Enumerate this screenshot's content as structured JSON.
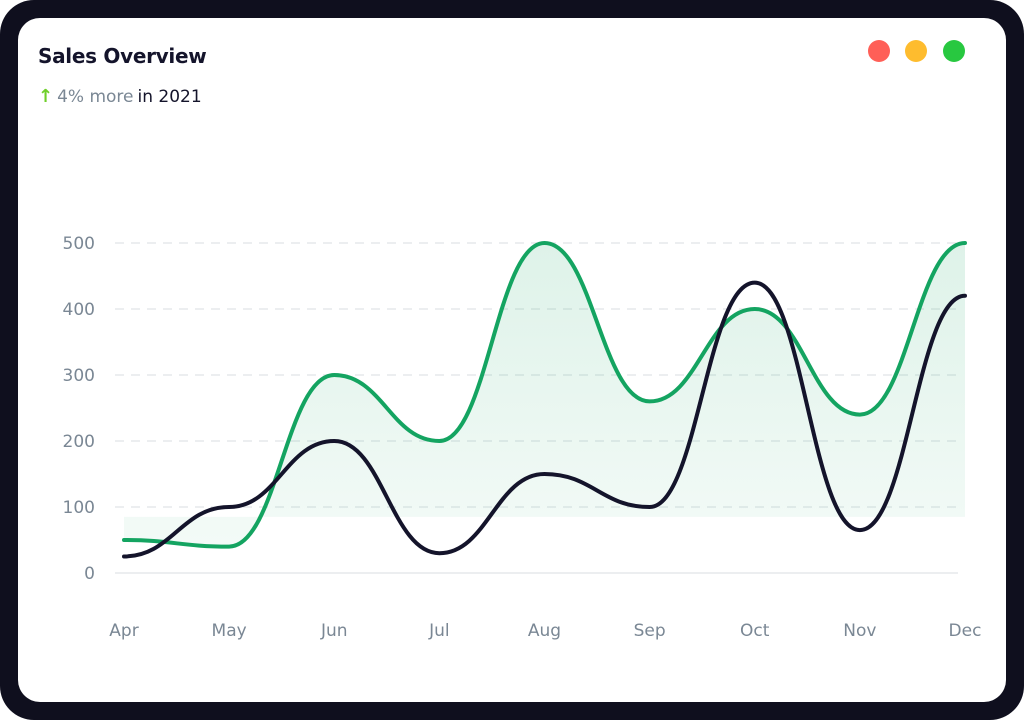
{
  "window": {
    "dots": [
      {
        "name": "close",
        "color": "#FF5F57"
      },
      {
        "name": "minimize",
        "color": "#FEBC2E"
      },
      {
        "name": "maximize",
        "color": "#28C840"
      }
    ]
  },
  "header": {
    "title": "Sales Overview",
    "arrow_icon": "arrow-up-icon",
    "change": "4% more",
    "period": "in 2021"
  },
  "chart_data": {
    "type": "line",
    "title": "Sales Overview",
    "categories": [
      "Apr",
      "May",
      "Jun",
      "Jul",
      "Aug",
      "Sep",
      "Oct",
      "Nov",
      "Dec"
    ],
    "ylim": [
      0,
      500
    ],
    "yticks": [
      "0",
      "100",
      "200",
      "300",
      "400",
      "500"
    ],
    "grid": true,
    "series": [
      {
        "values": [
          50,
          40,
          300,
          200,
          500,
          260,
          400,
          240,
          500
        ],
        "color": "#14a461",
        "fill": true
      },
      {
        "values": [
          25,
          100,
          200,
          30,
          150,
          100,
          440,
          65,
          420
        ],
        "color": "#14142b",
        "fill": false
      }
    ]
  }
}
